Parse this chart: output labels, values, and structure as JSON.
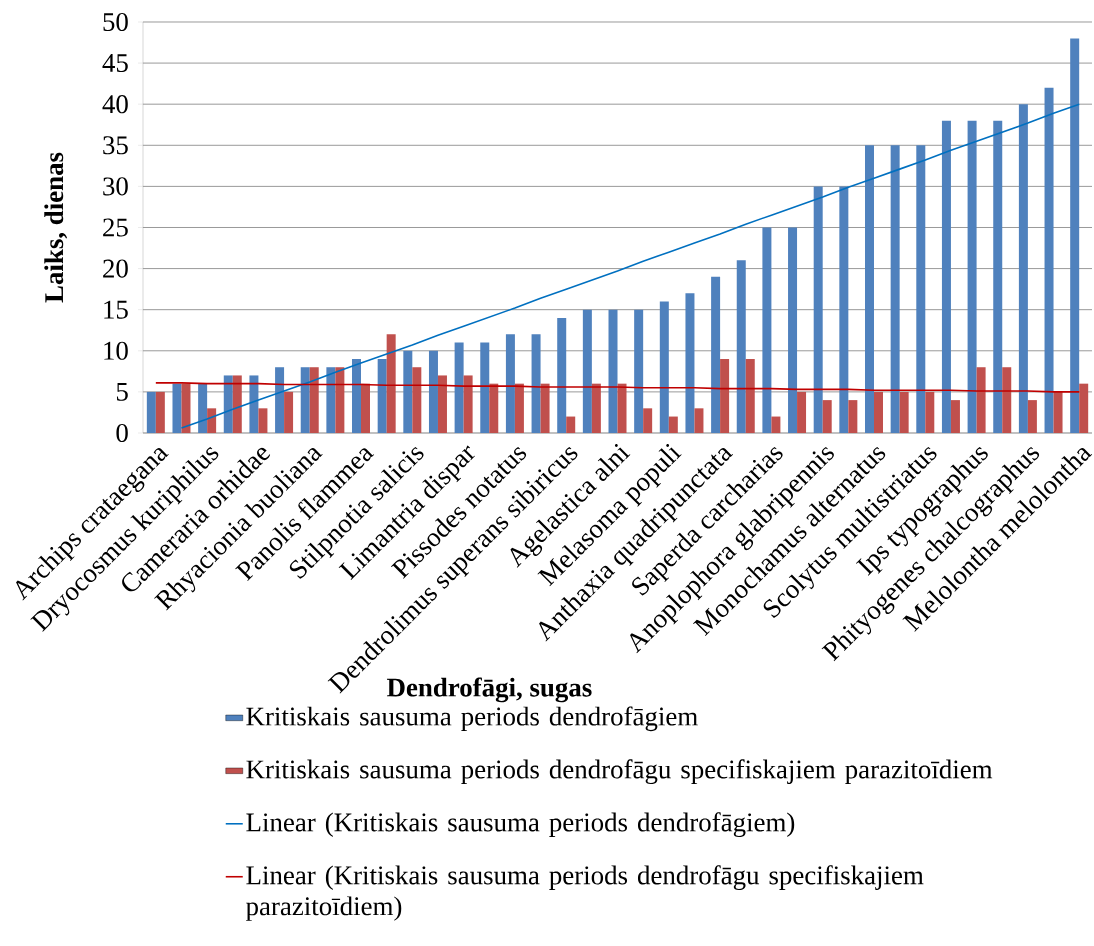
{
  "chart_data": {
    "type": "bar",
    "xlabel": "Dendrofāgi, sugas",
    "ylabel": "Laiks, dienas",
    "categories": [
      "Archips crataegana",
      null,
      "Dryocosmus kuriphilus",
      null,
      "Cameraria orhidae",
      null,
      "Rhyacionia buoliana",
      null,
      "Panolis flammea",
      null,
      "Stilpnotia salicis",
      null,
      "Limantria dispar",
      null,
      "Pissodes notatus",
      null,
      "Dendrolimus superans sibiricus",
      null,
      "Agelastica alni",
      null,
      "Melasoma populi",
      null,
      "Anthaxia quadripunctata",
      null,
      "Saperda carcharias",
      null,
      "Anoplophora glabripennis",
      null,
      "Monochamus alternatus",
      null,
      "Scolytus multistriatus",
      null,
      "Ips typographus",
      null,
      "Phityogenes chalcographus",
      null,
      "Melolontha melolontha"
    ],
    "series": [
      {
        "name": "Kritiskais sausuma periods dendrofāgiem",
        "color": "#4f81bd",
        "values": [
          5,
          6,
          6,
          7,
          7,
          8,
          8,
          8,
          9,
          9,
          10,
          10,
          11,
          11,
          12,
          12,
          14,
          15,
          15,
          15,
          16,
          17,
          19,
          21,
          25,
          25,
          30,
          30,
          35,
          35,
          35,
          38,
          38,
          38,
          40,
          42,
          48
        ]
      },
      {
        "name": "Kritiskais sausuma periods dendrofāgu specifiskajiem parazitoīdiem",
        "color": "#c0504d",
        "values": [
          5,
          6,
          3,
          7,
          3,
          5,
          8,
          8,
          6,
          12,
          8,
          7,
          7,
          6,
          6,
          6,
          2,
          6,
          6,
          3,
          2,
          3,
          9,
          9,
          2,
          5,
          4,
          4,
          5,
          5,
          5,
          4,
          8,
          8,
          4,
          5,
          6
        ]
      },
      {
        "name": "Linear (Kritiskais sausuma periods dendrofāgiem)",
        "type": "line",
        "color": "#0070c0",
        "values": [
          null,
          0.6,
          1.7,
          2.9,
          4.0,
          5.1,
          6.2,
          7.4,
          8.5,
          9.6,
          10.7,
          11.9,
          13.0,
          14.1,
          15.2,
          16.4,
          17.5,
          18.6,
          19.7,
          20.9,
          22.0,
          23.1,
          24.2,
          25.4,
          26.5,
          27.6,
          28.7,
          29.9,
          31.0,
          32.1,
          33.2,
          34.4,
          35.5,
          36.6,
          37.7,
          38.9,
          40.0
        ]
      },
      {
        "name": "Linear (Kritiskais sausuma periods dendrofāgu specifiskajiem parazitoīdiem)",
        "type": "line",
        "color": "#c00000",
        "values": [
          6.1,
          6.1,
          6.0,
          6.0,
          6.0,
          5.9,
          5.9,
          5.9,
          5.9,
          5.8,
          5.8,
          5.8,
          5.7,
          5.7,
          5.7,
          5.6,
          5.6,
          5.6,
          5.6,
          5.5,
          5.5,
          5.5,
          5.4,
          5.4,
          5.4,
          5.3,
          5.3,
          5.3,
          5.2,
          5.2,
          5.2,
          5.2,
          5.1,
          5.1,
          5.1,
          5.0,
          5.0
        ]
      }
    ],
    "ylim": [
      0,
      50
    ],
    "yticks": [
      0,
      5,
      10,
      15,
      20,
      25,
      30,
      35,
      40,
      45,
      50
    ],
    "grid": "y",
    "legend": "bottom"
  }
}
